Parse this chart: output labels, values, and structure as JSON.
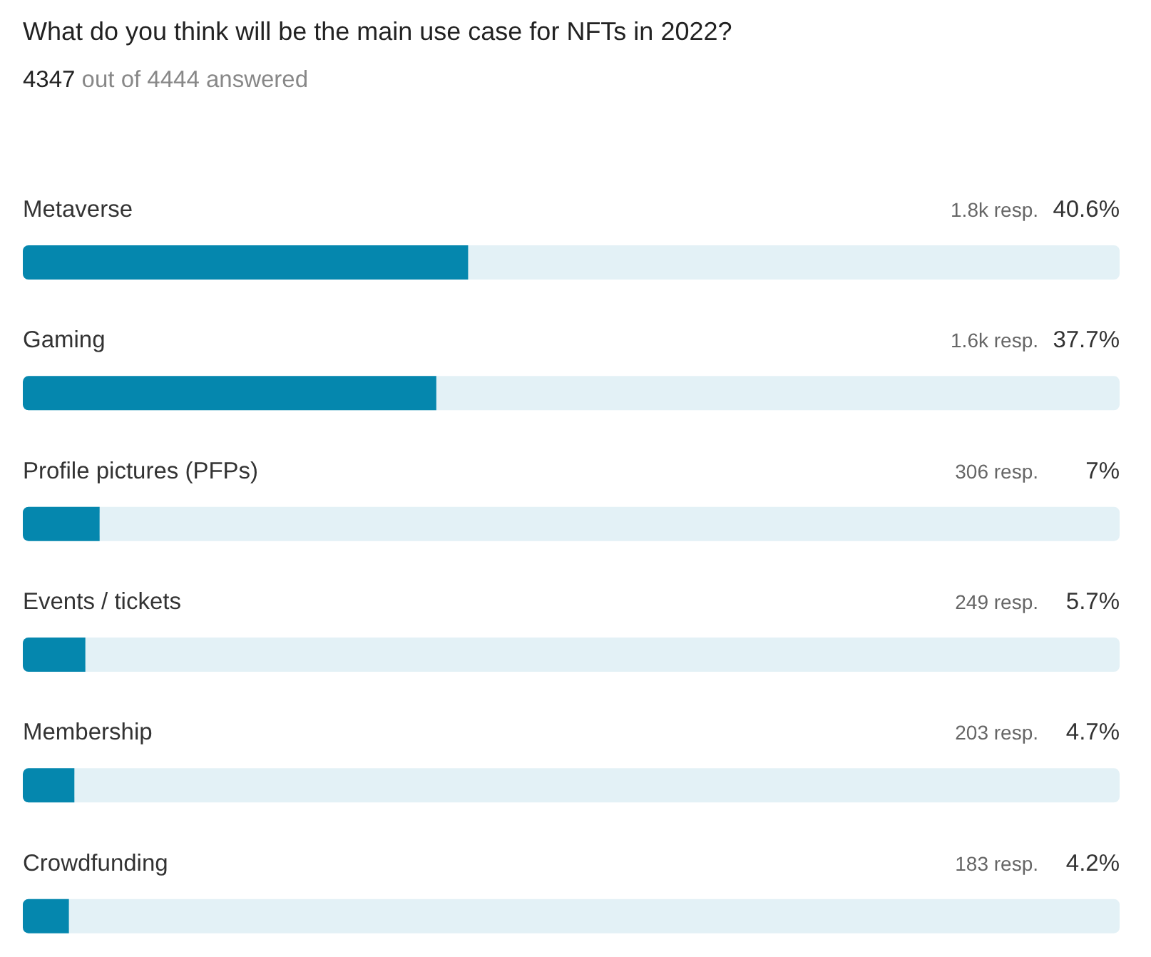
{
  "chart_data": {
    "type": "bar",
    "orientation": "horizontal",
    "title": "What do you think will be the main use case for NFTs in 2022?",
    "subtitle": "4347 out of 4444 answered",
    "categories": [
      "Metaverse",
      "Gaming",
      "Profile pictures (PFPs)",
      "Events / tickets",
      "Membership",
      "Crowdfunding"
    ],
    "values": [
      40.6,
      37.7,
      7,
      5.7,
      4.7,
      4.2
    ],
    "value_labels": [
      "40.6%",
      "37.7%",
      "7%",
      "5.7%",
      "4.7%",
      "4.2%"
    ],
    "color": "#0587ae",
    "xlim": [
      0,
      100
    ],
    "tick_labels": "y",
    "annotations": [
      "1.8k resp.",
      "1.6k resp.",
      "306 resp.",
      "249 resp.",
      "203 resp.",
      "183 resp."
    ]
  }
}
